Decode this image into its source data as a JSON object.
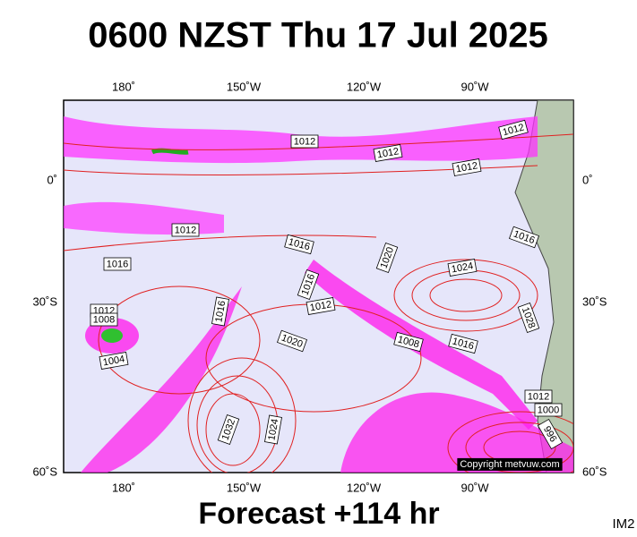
{
  "header": {
    "title": "0600 NZST Thu 17 Jul 2025"
  },
  "map": {
    "longitude_labels": [
      "180˚",
      "150˚W",
      "120˚W",
      "90˚W"
    ],
    "latitude_labels": [
      "0˚",
      "30˚S",
      "60˚S"
    ],
    "isobar_labels": [
      "1012",
      "1012",
      "1012",
      "1012",
      "1012",
      "1016",
      "1016",
      "1020",
      "1024",
      "1016",
      "1016",
      "1012",
      "1016",
      "1012",
      "1008",
      "1004",
      "1020",
      "1008",
      "1016",
      "1028",
      "1032",
      "1024",
      "1012",
      "1000",
      "996"
    ],
    "copyright": "Copyright metvuw.com"
  },
  "footer": {
    "caption": "Forecast +114 hr",
    "code": "IM2"
  }
}
